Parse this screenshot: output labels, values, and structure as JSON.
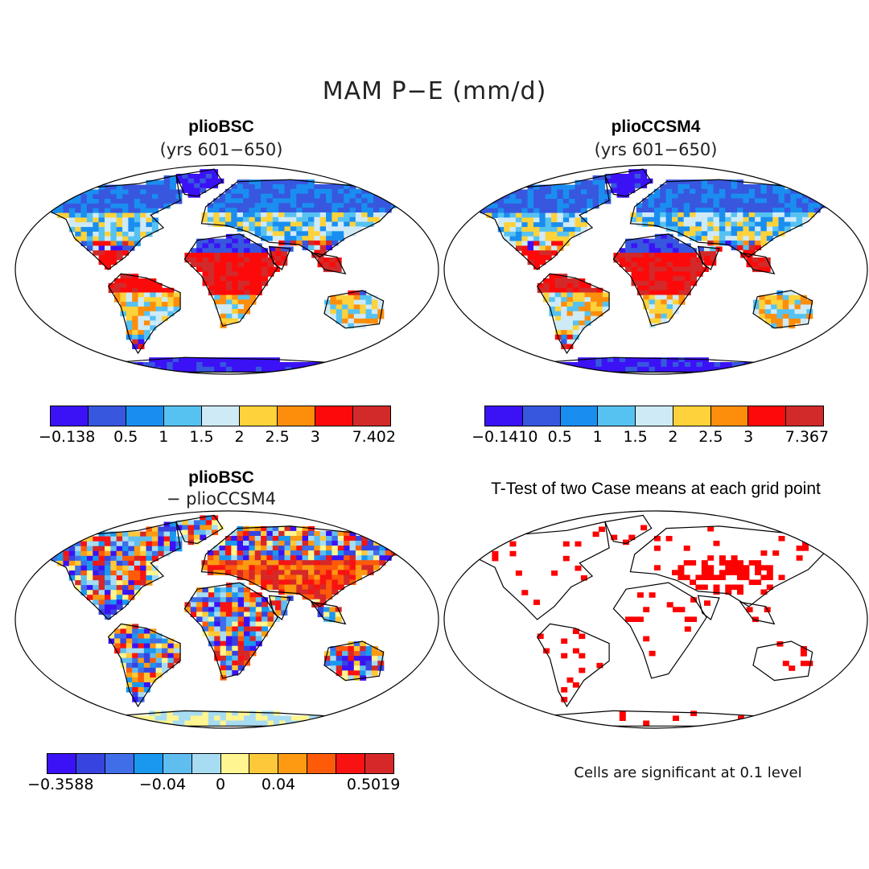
{
  "figure": {
    "title": "MAM P−E (mm/d)",
    "footnote": "Cells are significant at 0.1 level"
  },
  "panels": {
    "top_left": {
      "title": "plioBSC",
      "subtitle": "(yrs 601−650)"
    },
    "top_right": {
      "title": "plioCCSM4",
      "subtitle": "(yrs 601−650)"
    },
    "bottom_left": {
      "title": "plioBSC",
      "subtitle": "− plioCCSM4"
    },
    "bottom_right": {
      "title": "T-Test of two Case means at each grid point"
    }
  },
  "colorbars": {
    "top_left": {
      "colors": [
        "#3b12f5",
        "#3757df",
        "#1a8ef0",
        "#56c2f2",
        "#cfeaf7",
        "#fdd23a",
        "#fd8e0c",
        "#fc0a0a",
        "#d22a2a"
      ],
      "labels": [
        "−0.138",
        "0.5",
        "1",
        "1.5",
        "2",
        "2.5",
        "3",
        "7.402"
      ]
    },
    "top_right": {
      "colors": [
        "#3b12f5",
        "#3757df",
        "#1a8ef0",
        "#56c2f2",
        "#cfeaf7",
        "#fdd23a",
        "#fd8e0c",
        "#fc0a0a",
        "#d22a2a"
      ],
      "labels": [
        "−0.1410",
        "0.5",
        "1",
        "1.5",
        "2",
        "2.5",
        "3",
        "7.367"
      ]
    },
    "bottom_left": {
      "colors": [
        "#3b12f5",
        "#3744e0",
        "#3f6ee8",
        "#1a98f0",
        "#60bdf0",
        "#a7dcf2",
        "#fff591",
        "#fdc93a",
        "#fd9a12",
        "#fd5a0a",
        "#f81212",
        "#d62828"
      ],
      "labels": [
        "−0.3588",
        "−0.04",
        "0",
        "0.04",
        "0.5019"
      ]
    }
  },
  "map_colors": {
    "land_outline": "#000000",
    "ocean": "#ffffff",
    "significant": "#ff0000"
  }
}
